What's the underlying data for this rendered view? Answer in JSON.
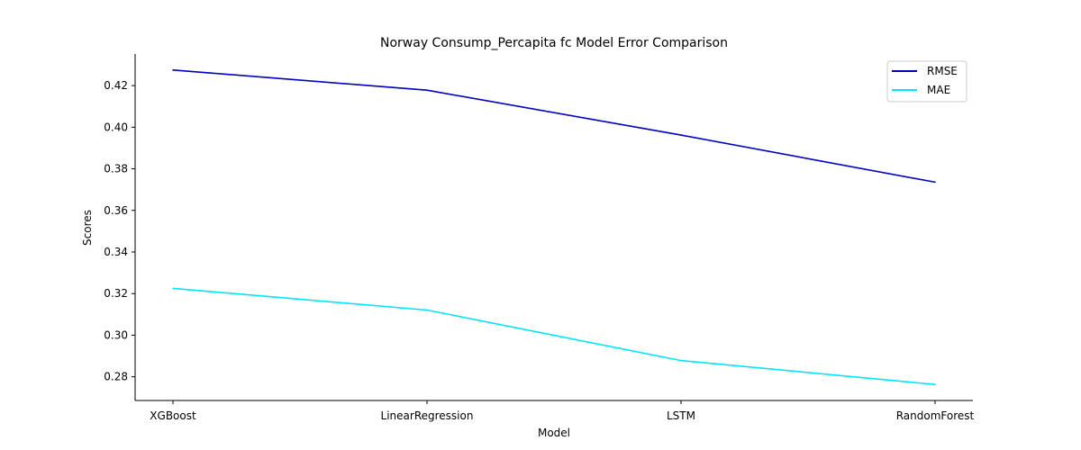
{
  "chart_data": {
    "type": "line",
    "title": "Norway Consump_Percapita fc Model Error Comparison",
    "xlabel": "Model",
    "ylabel": "Scores",
    "categories": [
      "XGBoost",
      "LinearRegression",
      "LSTM",
      "RandomForest"
    ],
    "series": [
      {
        "name": "RMSE",
        "color": "#0000c0",
        "values": [
          0.4275,
          0.4178,
          0.3962,
          0.3736
        ]
      },
      {
        "name": "MAE",
        "color": "#00e5ff",
        "values": [
          0.3225,
          0.3121,
          0.2878,
          0.2763
        ]
      }
    ],
    "yticks": [
      "0.28",
      "0.30",
      "0.32",
      "0.34",
      "0.36",
      "0.38",
      "0.40",
      "0.42"
    ],
    "ylim": [
      0.2686,
      0.4352
    ],
    "grid": false,
    "legend": "top-right"
  }
}
